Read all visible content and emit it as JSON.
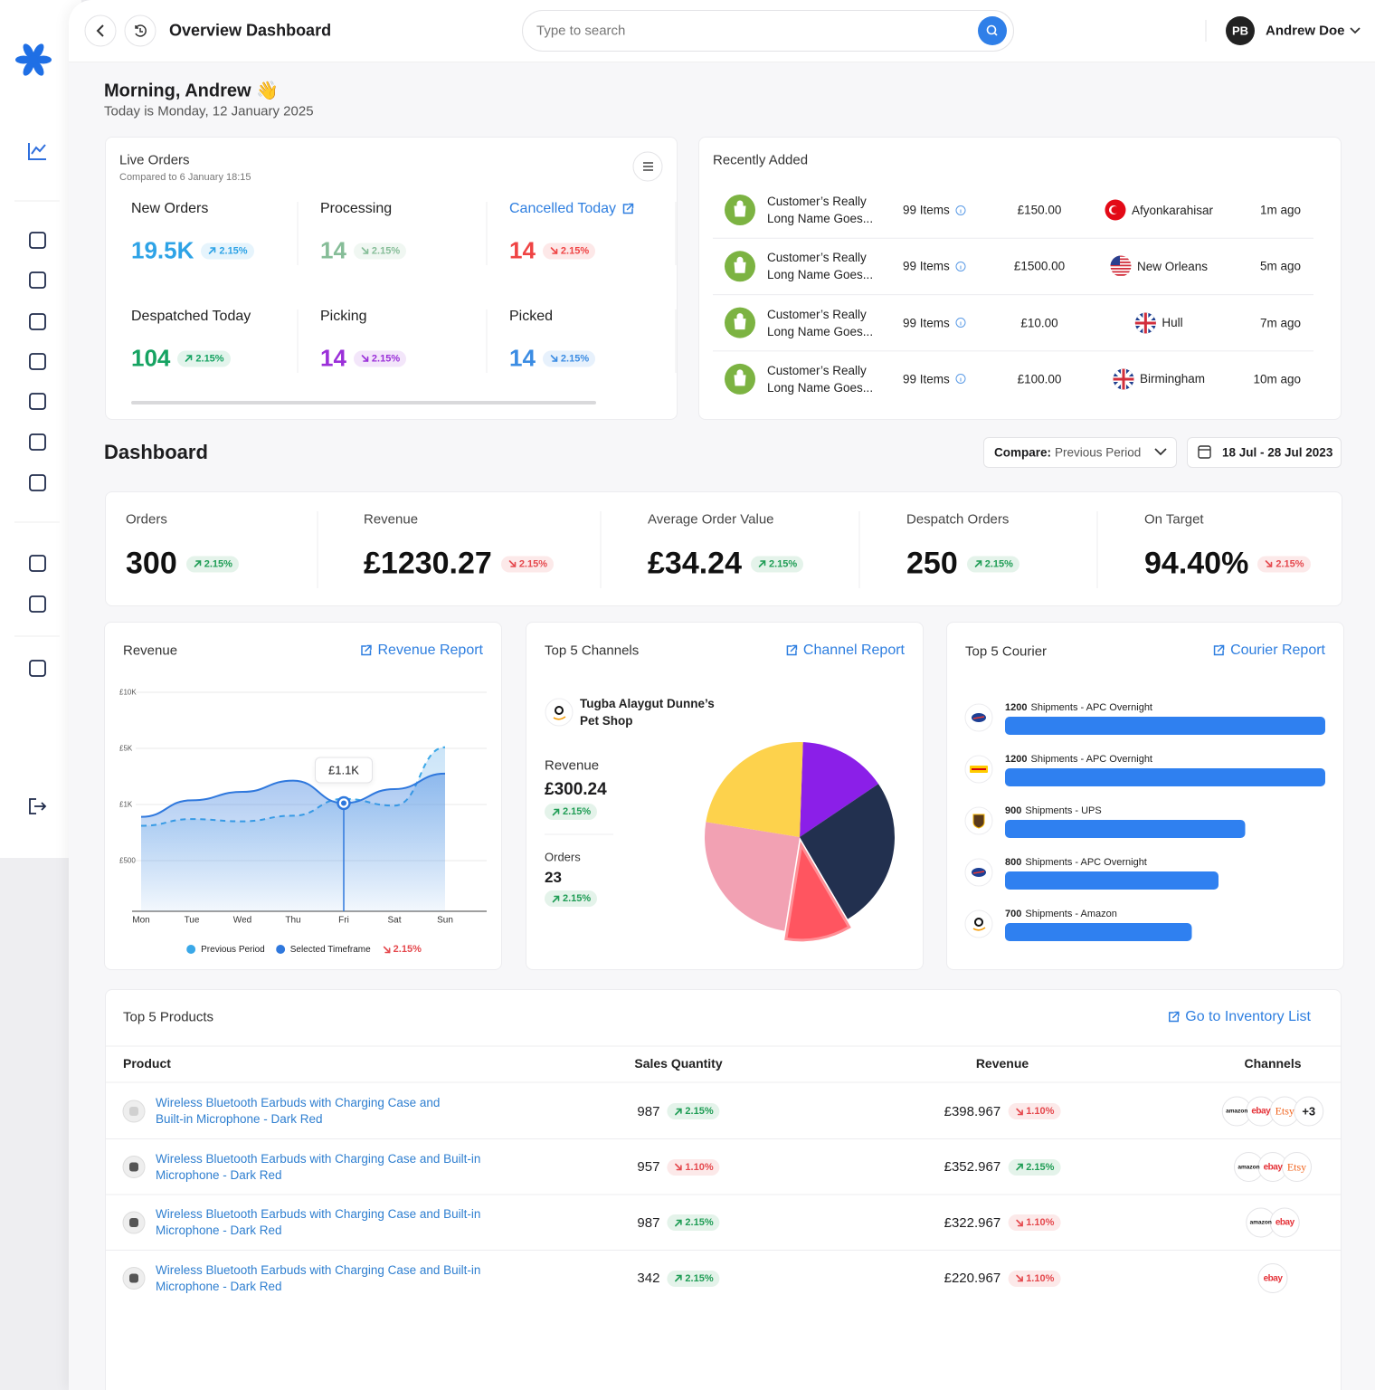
{
  "header": {
    "title": "Overview Dashboard",
    "search_placeholder": "Type to search",
    "user_initials": "PB",
    "user_name": "Andrew Doe"
  },
  "greeting": {
    "title": "Morning, Andrew 👋",
    "date": "Today is Monday, 12 January 2025"
  },
  "live_orders": {
    "title": "Live Orders",
    "subtitle": "Compared to 6 January 18:15",
    "stats": [
      {
        "label": "New Orders",
        "value": "19.5K",
        "change": "2.15%",
        "trend": "up",
        "color": "#2ea3e6"
      },
      {
        "label": "Processing",
        "value": 14,
        "change": "2.15%",
        "trend": "down",
        "color": "#86bd98"
      },
      {
        "label": "Cancelled Today",
        "value": 14,
        "change": "2.15%",
        "trend": "down",
        "color": "#ef4444",
        "link": true
      },
      {
        "label": "Despatched Today",
        "value": 104,
        "change": "2.15%",
        "trend": "up",
        "color": "#16a362"
      },
      {
        "label": "Picking",
        "value": 14,
        "change": "2.15%",
        "trend": "down",
        "color": "#9b30d9"
      },
      {
        "label": "Picked",
        "value": 14,
        "change": "2.15%",
        "trend": "down",
        "color": "#3b8ce3"
      }
    ]
  },
  "recently_added": {
    "title": "Recently Added",
    "rows": [
      {
        "customer": "Customer’s Really Long Name Goes...",
        "items": "99 Items",
        "price": "£150.00",
        "flag": "tr",
        "city": "Afyonkarahisar",
        "time": "1m ago"
      },
      {
        "customer": "Customer’s Really Long Name Goes...",
        "items": "99 Items",
        "price": "£1500.00",
        "flag": "us",
        "city": "New Orleans",
        "time": "5m ago"
      },
      {
        "customer": "Customer’s Really Long Name Goes...",
        "items": "99 Items",
        "price": "£10.00",
        "flag": "gb",
        "city": "Hull",
        "time": "7m ago"
      },
      {
        "customer": "Customer’s Really Long Name Goes...",
        "items": "99 Items",
        "price": "£100.00",
        "flag": "gb",
        "city": "Birmingham",
        "time": "10m ago"
      }
    ]
  },
  "dashboard": {
    "title": "Dashboard",
    "compare_label": "Compare:",
    "compare_value": "Previous Period",
    "date_range": "18 Jul - 28 Jul 2023",
    "kpis": [
      {
        "label": "Orders",
        "value": 300,
        "change": "2.15%",
        "trend": "up"
      },
      {
        "label": "Revenue",
        "value": "£1230.27",
        "change": "2.15%",
        "trend": "down"
      },
      {
        "label": "Average Order Value",
        "value": "£34.24",
        "change": "2.15%",
        "trend": "up"
      },
      {
        "label": "Despatch Orders",
        "value": 250,
        "change": "2.15%",
        "trend": "up"
      },
      {
        "label": "On Target",
        "value": "94.40%",
        "change": "2.15%",
        "trend": "down"
      }
    ]
  },
  "chart_data": [
    {
      "type": "line",
      "title": "Revenue",
      "link": "Revenue Report",
      "categories": [
        "Mon",
        "Tue",
        "Wed",
        "Thu",
        "Fri",
        "Sat",
        "Sun"
      ],
      "series": [
        {
          "name": "Previous Period",
          "color": "#3aa8e8",
          "style": "dashed",
          "values": [
            810,
            870,
            850,
            900,
            1400,
            990,
            5100
          ]
        },
        {
          "name": "Selected Timeframe",
          "color": "#2f78dd",
          "values": [
            890,
            1300,
            1900,
            2700,
            1100,
            2100,
            3200
          ],
          "value_labels": [
            null,
            null,
            null,
            null,
            "£1.1K",
            null,
            null
          ]
        }
      ],
      "ylim": [
        0,
        10000
      ],
      "yticks": [
        {
          "value": 500,
          "label": "£500"
        },
        {
          "value": 1000,
          "label": "£1K"
        },
        {
          "value": 5000,
          "label": "£5K"
        },
        {
          "value": 10000,
          "label": "£10K"
        }
      ],
      "grid": true,
      "legend_change": "2.15%",
      "legend_trend": "down"
    },
    {
      "type": "pie",
      "title": "Top 5 Channels",
      "link": "Channel Report",
      "shop": "Tugba Alaygut Dunne’s Pet Shop",
      "metrics": [
        {
          "label": "Revenue",
          "value": "£300.24",
          "change": "2.15%",
          "trend": "up"
        },
        {
          "label": "Orders",
          "value": 23,
          "change": "2.15%",
          "trend": "up"
        }
      ],
      "values": [
        15,
        26,
        11,
        25,
        23
      ],
      "colors": [
        "#8b1fe8",
        "#22304f",
        "#ff5560",
        "#f2a1b3",
        "#fdd24c"
      ],
      "explode": [
        false,
        false,
        true,
        false,
        false
      ]
    },
    {
      "type": "hbar",
      "title": "Top 5 Courier",
      "link": "Courier Report",
      "values": [
        1200,
        1200,
        900,
        800,
        700
      ],
      "labels": [
        "Shipments - APC Overnight",
        "Shipments - APC Overnight",
        "Shipments - UPS",
        "Shipments - APC Overnight",
        "Shipments - Amazon"
      ],
      "icons": [
        "apc",
        "dhl",
        "ups",
        "apc",
        "amazon"
      ],
      "color": "#2f80f0"
    }
  ],
  "products": {
    "title": "Top 5 Products",
    "link": "Go to Inventory List",
    "columns": [
      "Product",
      "Sales Quantity",
      "Revenue",
      "Channels"
    ],
    "rows": [
      {
        "name": "Wireless Bluetooth Earbuds with Charging Case and Built-in Microphone - Dark Red",
        "quantity": 987,
        "quantity_change": "2.15%",
        "quantity_trend": "up",
        "revenue": "£398.967",
        "revenue_change": "1.10%",
        "revenue_trend": "down",
        "channels": [
          "amazon",
          "ebay",
          "Etsy"
        ],
        "more": "+3"
      },
      {
        "name": "Wireless Bluetooth Earbuds with Charging Case and Built-in Microphone - Dark Red",
        "quantity": 957,
        "quantity_change": "1.10%",
        "quantity_trend": "down",
        "revenue": "£352.967",
        "revenue_change": "2.15%",
        "revenue_trend": "up",
        "channels": [
          "amazon",
          "ebay",
          "Etsy"
        ]
      },
      {
        "name": "Wireless Bluetooth Earbuds with Charging Case and Built-in Microphone - Dark Red",
        "quantity": 987,
        "quantity_change": "2.15%",
        "quantity_trend": "up",
        "revenue": "£322.967",
        "revenue_change": "1.10%",
        "revenue_trend": "down",
        "channels": [
          "amazon",
          "ebay"
        ]
      },
      {
        "name": "Wireless Bluetooth Earbuds with Charging Case and Built-in Microphone - Dark Red",
        "quantity": 342,
        "quantity_change": "2.15%",
        "quantity_trend": "up",
        "revenue": "£220.967",
        "revenue_change": "1.10%",
        "revenue_trend": "down",
        "channels": [
          "ebay"
        ]
      }
    ]
  }
}
